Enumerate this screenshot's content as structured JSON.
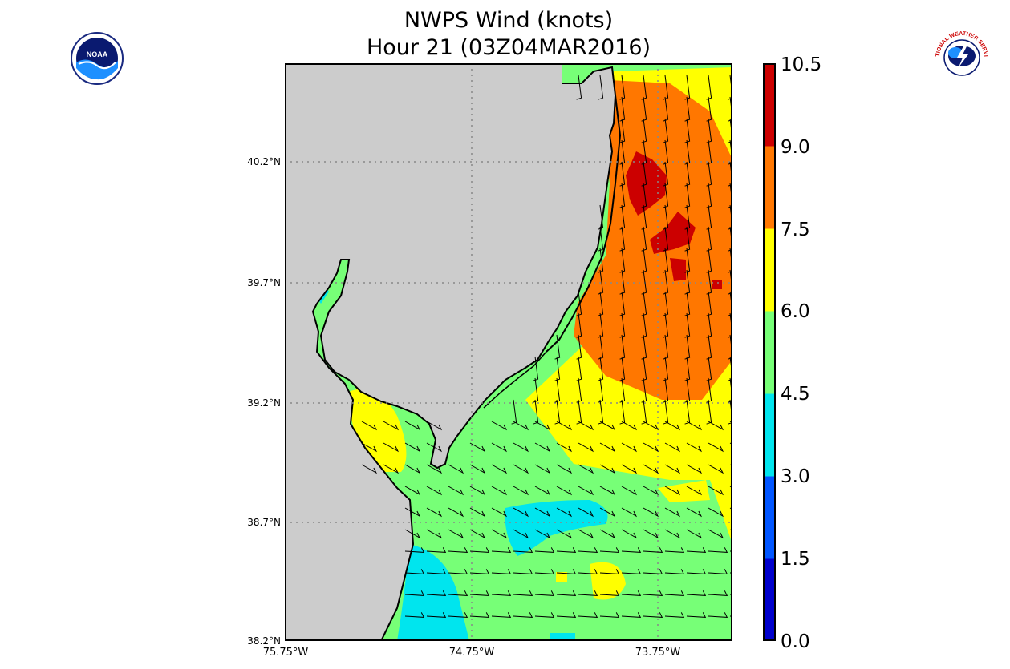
{
  "title": {
    "line1": "NWPS Wind (knots)",
    "line2": "Hour 21 (03Z04MAR2016)"
  },
  "colorbar": {
    "ticks": [
      "0.0",
      "1.5",
      "3.0",
      "4.5",
      "6.0",
      "7.5",
      "9.0",
      "10.5"
    ],
    "colors": [
      "#0000cc",
      "#0055ff",
      "#00e5ee",
      "#77ff77",
      "#ffff00",
      "#ff7700",
      "#cc0000"
    ]
  },
  "axes": {
    "lat_labels": [
      "40.2°N",
      "39.7°N",
      "39.2°N",
      "38.7°N",
      "38.2°N"
    ],
    "lon_labels": [
      "75.75°W",
      "74.75°W",
      "73.75°W"
    ]
  },
  "logos": {
    "left_icon": "noaa-logo",
    "left_text": "NOAA",
    "right_icon": "nws-logo",
    "right_text": "NATIONAL WEATHER SERVICE"
  },
  "colors": {
    "land": "#cccccc",
    "coast": "#000000",
    "grid": "#888888"
  }
}
